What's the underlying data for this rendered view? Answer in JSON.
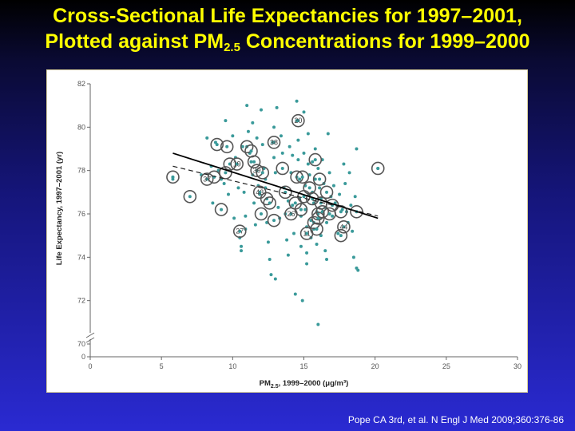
{
  "slide": {
    "title_line1": "Cross-Sectional Life Expectancies for 1997–2001,",
    "title_line2_pre": "Plotted against PM",
    "title_line2_sub": "2.5",
    "title_line2_post": " Concentrations for 1999–2000",
    "citation": "Pope CA 3rd, et al. N Engl J Med 2009;360:376-86"
  },
  "colors": {
    "point": "#3a9a9a",
    "circle": "#555555",
    "solid_line": "#000000",
    "dashed_line": "#222222",
    "title": "#ffff00"
  },
  "chart_data": {
    "type": "scatter",
    "title": "",
    "xlabel_pre": "PM",
    "xlabel_sub": "2.5",
    "xlabel_post": ", 1999–2000 (μg/m³)",
    "ylabel": "Life Expectancy, 1997–2001 (yr)",
    "xlim": [
      0,
      30
    ],
    "ylim": [
      70,
      82
    ],
    "axis_break": true,
    "grid": false,
    "x_ticks": [
      0,
      5,
      10,
      15,
      20,
      25,
      30
    ],
    "y_ticks": [
      70,
      72,
      74,
      76,
      78,
      80,
      82
    ],
    "y_zero_label": "0",
    "points": [
      [
        5.8,
        77.7
      ],
      [
        5.8,
        77.6
      ],
      [
        7.8,
        77.8
      ],
      [
        8.2,
        79.5
      ],
      [
        8.5,
        78.2
      ],
      [
        8.6,
        76.5
      ],
      [
        8.8,
        79.3
      ],
      [
        9.0,
        78.0
      ],
      [
        9.2,
        77.6
      ],
      [
        9.4,
        77.4
      ],
      [
        9.5,
        80.3
      ],
      [
        9.7,
        76.9
      ],
      [
        10.0,
        79.6
      ],
      [
        10.1,
        75.8
      ],
      [
        10.2,
        78.6
      ],
      [
        10.4,
        77.2
      ],
      [
        10.5,
        74.9
      ],
      [
        10.6,
        74.5
      ],
      [
        10.6,
        74.3
      ],
      [
        10.7,
        79.1
      ],
      [
        10.8,
        77.0
      ],
      [
        10.9,
        75.3
      ],
      [
        11.0,
        81.0
      ],
      [
        11.1,
        79.8
      ],
      [
        11.2,
        78.8
      ],
      [
        11.3,
        78.4
      ],
      [
        11.4,
        77.8
      ],
      [
        11.5,
        76.5
      ],
      [
        11.6,
        75.5
      ],
      [
        11.7,
        79.5
      ],
      [
        11.8,
        77.3
      ],
      [
        11.9,
        76.9
      ],
      [
        12.0,
        80.8
      ],
      [
        12.1,
        79.2
      ],
      [
        12.2,
        78.1
      ],
      [
        12.3,
        77.2
      ],
      [
        12.4,
        75.6
      ],
      [
        12.5,
        74.7
      ],
      [
        12.6,
        73.9
      ],
      [
        12.7,
        73.2
      ],
      [
        12.8,
        79.3
      ],
      [
        12.9,
        78.6
      ],
      [
        13.0,
        77.9
      ],
      [
        13.0,
        73.0
      ],
      [
        13.1,
        80.9
      ],
      [
        13.2,
        76.3
      ],
      [
        13.3,
        75.8
      ],
      [
        13.4,
        79.6
      ],
      [
        13.5,
        78.8
      ],
      [
        13.6,
        77.2
      ],
      [
        13.7,
        76.0
      ],
      [
        13.8,
        74.8
      ],
      [
        13.9,
        74.1
      ],
      [
        14.0,
        79.1
      ],
      [
        14.1,
        77.9
      ],
      [
        14.2,
        76.4
      ],
      [
        14.3,
        75.1
      ],
      [
        14.4,
        72.3
      ],
      [
        14.5,
        81.2
      ],
      [
        14.5,
        80.3
      ],
      [
        14.6,
        79.4
      ],
      [
        14.6,
        78.5
      ],
      [
        14.7,
        77.6
      ],
      [
        14.7,
        76.7
      ],
      [
        14.8,
        75.9
      ],
      [
        14.8,
        74.5
      ],
      [
        14.9,
        72.0
      ],
      [
        15.0,
        80.7
      ],
      [
        15.0,
        78.8
      ],
      [
        15.1,
        77.3
      ],
      [
        15.1,
        76.2
      ],
      [
        15.2,
        75.4
      ],
      [
        15.2,
        73.7
      ],
      [
        15.3,
        79.7
      ],
      [
        15.3,
        78.3
      ],
      [
        15.4,
        77.8
      ],
      [
        15.4,
        76.9
      ],
      [
        15.5,
        75.7
      ],
      [
        15.5,
        74.9
      ],
      [
        15.6,
        78.4
      ],
      [
        15.6,
        77.0
      ],
      [
        15.7,
        76.5
      ],
      [
        15.7,
        75.3
      ],
      [
        15.8,
        79.0
      ],
      [
        15.8,
        77.6
      ],
      [
        15.9,
        76.1
      ],
      [
        15.9,
        74.6
      ],
      [
        16.0,
        70.9
      ],
      [
        16.0,
        78.1
      ],
      [
        16.1,
        77.2
      ],
      [
        16.1,
        75.8
      ],
      [
        16.2,
        76.7
      ],
      [
        16.2,
        75.0
      ],
      [
        16.3,
        78.5
      ],
      [
        16.4,
        77.4
      ],
      [
        16.5,
        76.3
      ],
      [
        16.6,
        75.6
      ],
      [
        16.7,
        79.7
      ],
      [
        16.8,
        77.9
      ],
      [
        16.9,
        76.8
      ],
      [
        17.0,
        75.9
      ],
      [
        17.1,
        77.3
      ],
      [
        17.2,
        76.5
      ],
      [
        17.4,
        75.1
      ],
      [
        17.5,
        76.9
      ],
      [
        17.7,
        76.2
      ],
      [
        17.8,
        78.3
      ],
      [
        17.9,
        77.4
      ],
      [
        18.0,
        76.1
      ],
      [
        18.1,
        75.6
      ],
      [
        18.2,
        77.9
      ],
      [
        18.3,
        76.4
      ],
      [
        18.4,
        75.2
      ],
      [
        18.5,
        74.0
      ],
      [
        18.6,
        76.8
      ],
      [
        18.7,
        79.0
      ],
      [
        18.8,
        73.4
      ],
      [
        18.7,
        73.5
      ],
      [
        20.2,
        78.1
      ],
      [
        16.6,
        73.9
      ],
      [
        12.3,
        77.6
      ],
      [
        13.9,
        76.6
      ],
      [
        15.2,
        74.2
      ],
      [
        16.5,
        74.3
      ],
      [
        10.9,
        75.9
      ],
      [
        11.4,
        80.2
      ],
      [
        12.9,
        80.0
      ],
      [
        14.2,
        78.7
      ]
    ],
    "circled": [
      {
        "x": 5.8,
        "y": 77.7,
        "label": ""
      },
      {
        "x": 7.0,
        "y": 76.8,
        "label": ""
      },
      {
        "x": 8.2,
        "y": 77.6,
        "label": "37"
      },
      {
        "x": 8.9,
        "y": 79.2,
        "label": ""
      },
      {
        "x": 8.7,
        "y": 77.7,
        "label": ""
      },
      {
        "x": 9.2,
        "y": 76.2,
        "label": ""
      },
      {
        "x": 9.6,
        "y": 79.1,
        "label": ""
      },
      {
        "x": 9.5,
        "y": 77.9,
        "label": ""
      },
      {
        "x": 9.8,
        "y": 78.3,
        "label": ""
      },
      {
        "x": 10.3,
        "y": 78.3,
        "label": "19"
      },
      {
        "x": 10.5,
        "y": 75.2,
        "label": "27"
      },
      {
        "x": 11.0,
        "y": 79.1,
        "label": ""
      },
      {
        "x": 11.3,
        "y": 78.9,
        "label": ""
      },
      {
        "x": 11.5,
        "y": 78.4,
        "label": ""
      },
      {
        "x": 11.7,
        "y": 78.0,
        "label": "39"
      },
      {
        "x": 11.9,
        "y": 77.0,
        "label": "43"
      },
      {
        "x": 12.0,
        "y": 76.0,
        "label": ""
      },
      {
        "x": 12.1,
        "y": 77.9,
        "label": ""
      },
      {
        "x": 12.4,
        "y": 76.7,
        "label": ""
      },
      {
        "x": 12.6,
        "y": 76.5,
        "label": ""
      },
      {
        "x": 12.9,
        "y": 79.3,
        "label": "38"
      },
      {
        "x": 12.9,
        "y": 75.7,
        "label": ""
      },
      {
        "x": 13.5,
        "y": 78.1,
        "label": ""
      },
      {
        "x": 13.7,
        "y": 77.0,
        "label": ""
      },
      {
        "x": 14.1,
        "y": 76.0,
        "label": "26"
      },
      {
        "x": 14.4,
        "y": 76.5,
        "label": ""
      },
      {
        "x": 14.5,
        "y": 77.7,
        "label": ""
      },
      {
        "x": 14.6,
        "y": 80.3,
        "label": "20"
      },
      {
        "x": 14.8,
        "y": 76.2,
        "label": ""
      },
      {
        "x": 14.9,
        "y": 77.7,
        "label": ""
      },
      {
        "x": 15.0,
        "y": 76.8,
        "label": ""
      },
      {
        "x": 15.2,
        "y": 75.1,
        "label": "11"
      },
      {
        "x": 15.4,
        "y": 77.2,
        "label": ""
      },
      {
        "x": 15.6,
        "y": 76.7,
        "label": ""
      },
      {
        "x": 15.7,
        "y": 75.6,
        "label": ""
      },
      {
        "x": 15.8,
        "y": 78.5,
        "label": ""
      },
      {
        "x": 15.9,
        "y": 75.3,
        "label": ""
      },
      {
        "x": 16.0,
        "y": 76.0,
        "label": ""
      },
      {
        "x": 16.0,
        "y": 75.8,
        "label": ""
      },
      {
        "x": 16.1,
        "y": 77.6,
        "label": ""
      },
      {
        "x": 16.2,
        "y": 76.5,
        "label": ""
      },
      {
        "x": 16.3,
        "y": 76.1,
        "label": ""
      },
      {
        "x": 16.6,
        "y": 77.0,
        "label": ""
      },
      {
        "x": 16.8,
        "y": 76.0,
        "label": ""
      },
      {
        "x": 17.0,
        "y": 76.4,
        "label": ""
      },
      {
        "x": 17.6,
        "y": 76.1,
        "label": ""
      },
      {
        "x": 17.6,
        "y": 75.0,
        "label": ""
      },
      {
        "x": 17.8,
        "y": 75.4,
        "label": "44"
      },
      {
        "x": 18.7,
        "y": 76.1,
        "label": ""
      },
      {
        "x": 20.2,
        "y": 78.1,
        "label": ""
      }
    ],
    "regression_solid": {
      "x1": 5.8,
      "y1": 78.8,
      "x2": 20.2,
      "y2": 75.8
    },
    "regression_dashed": {
      "x1": 5.8,
      "y1": 78.2,
      "x2": 20.2,
      "y2": 75.9
    }
  }
}
